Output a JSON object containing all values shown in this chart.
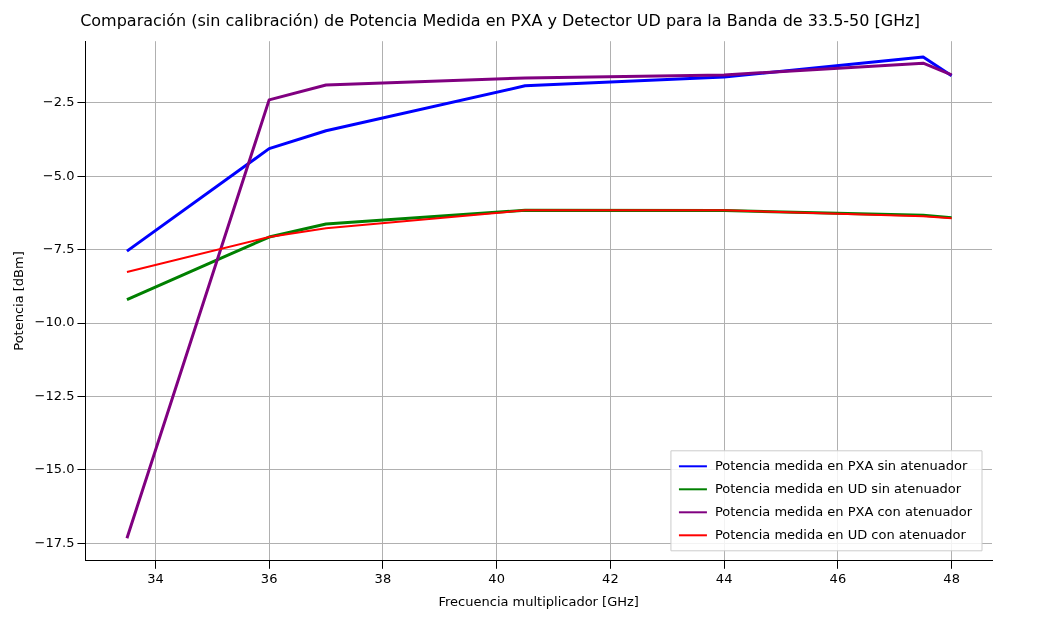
{
  "chart_data": {
    "type": "line",
    "title": "Comparación (sin calibración) de Potencia Medida en PXA y Detector UD para la Banda de 33.5-50 [GHz]",
    "xlabel": "Frecuencia multiplicador [GHz]",
    "ylabel": "Potencia [dBm]",
    "x": [
      33.5,
      36,
      37,
      40.5,
      44,
      47.5,
      48
    ],
    "series": [
      {
        "name": "Potencia medida en PXA sin atenuador",
        "color": "#0000ff",
        "values": [
          -7.55,
          -4.06,
          -3.45,
          -1.92,
          -1.62,
          -0.94,
          -1.58
        ]
      },
      {
        "name": "Potencia medida en UD sin atenuador",
        "color": "#008000",
        "values": [
          -9.2,
          -7.07,
          -6.63,
          -6.16,
          -6.17,
          -6.33,
          -6.41
        ]
      },
      {
        "name": "Potencia medida en PXA con atenuador",
        "color": "#800080",
        "values": [
          -17.33,
          -2.4,
          -1.89,
          -1.65,
          -1.55,
          -1.15,
          -1.55
        ]
      },
      {
        "name": "Potencia medida en UD con atenuador",
        "color": "#ff0000",
        "values": [
          -8.26,
          -7.07,
          -6.77,
          -6.16,
          -6.16,
          -6.36,
          -6.43
        ]
      }
    ],
    "xlim": [
      32.77,
      48.71
    ],
    "xticks": [
      34,
      36,
      38,
      40,
      42,
      44,
      46,
      48
    ],
    "ylim": [
      -18.1,
      -0.4
    ],
    "yticks": [
      {
        "value": -17.5,
        "label": "−17.5"
      },
      {
        "value": -15,
        "label": "−15.0"
      },
      {
        "value": -12.5,
        "label": "−12.5"
      },
      {
        "value": -10,
        "label": "−10.0"
      },
      {
        "value": -7.5,
        "label": "−7.5"
      },
      {
        "value": -5,
        "label": "−5.0"
      },
      {
        "value": -2.5,
        "label": "−2.5"
      }
    ],
    "grid": true,
    "legend": "bottom right",
    "marker": "none",
    "line_style": "solid"
  }
}
